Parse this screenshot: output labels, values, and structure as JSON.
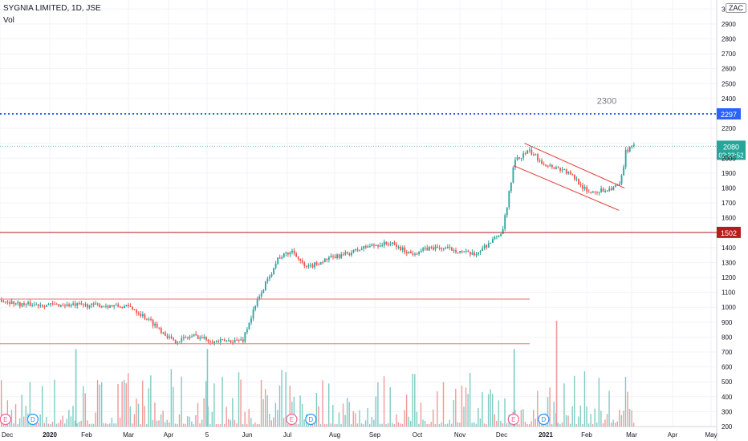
{
  "header": {
    "title": "SYGNIA LIMITED, 1D, JSE",
    "indicator": "Vol",
    "currency": "ZAC"
  },
  "chart_data": {
    "type": "candlestick",
    "ylim": [
      200,
      3050
    ],
    "y_ticks": [
      200,
      300,
      400,
      500,
      600,
      700,
      800,
      900,
      1000,
      1100,
      1200,
      1300,
      1400,
      1500,
      1600,
      1700,
      1800,
      1900,
      2000,
      2100,
      2200,
      2300,
      2400,
      2500,
      2600,
      2700,
      2800,
      2900,
      3000
    ],
    "x_ticks": [
      "Dec",
      "2020",
      "Feb",
      "Mar",
      "Apr",
      "5",
      "Jun",
      "Jul",
      "Aug",
      "Sep",
      "Oct",
      "Nov",
      "Dec",
      "2021",
      "Feb",
      "Mar",
      "Apr",
      "May"
    ],
    "price_path": [
      [
        "2019-12-01",
        1050
      ],
      [
        "2019-12-15",
        1020
      ],
      [
        "2020-01-15",
        1015
      ],
      [
        "2020-02-15",
        1012
      ],
      [
        "2020-03-05",
        1000
      ],
      [
        "2020-03-20",
        900
      ],
      [
        "2020-04-05",
        770
      ],
      [
        "2020-04-20",
        810
      ],
      [
        "2020-05-05",
        770
      ],
      [
        "2020-05-25",
        780
      ],
      [
        "2020-06-05",
        1050
      ],
      [
        "2020-06-20",
        1330
      ],
      [
        "2020-07-01",
        1380
      ],
      [
        "2020-07-10",
        1260
      ],
      [
        "2020-07-25",
        1320
      ],
      [
        "2020-08-10",
        1360
      ],
      [
        "2020-08-25",
        1410
      ],
      [
        "2020-09-10",
        1430
      ],
      [
        "2020-09-25",
        1360
      ],
      [
        "2020-10-10",
        1400
      ],
      [
        "2020-10-25",
        1390
      ],
      [
        "2020-11-10",
        1350
      ],
      [
        "2020-11-25",
        1460
      ],
      [
        "2020-12-01",
        1510
      ],
      [
        "2020-12-10",
        1980
      ],
      [
        "2020-12-20",
        2050
      ],
      [
        "2021-01-01",
        1960
      ],
      [
        "2021-01-15",
        1920
      ],
      [
        "2021-01-25",
        1850
      ],
      [
        "2021-02-01",
        1770
      ],
      [
        "2021-02-15",
        1790
      ],
      [
        "2021-02-25",
        1820
      ],
      [
        "2021-03-01",
        2050
      ],
      [
        "2021-03-08",
        2080
      ]
    ],
    "volume_path": [
      [
        "2019-12-01",
        50
      ],
      [
        "2021-03-08",
        50
      ]
    ],
    "volume_spikes": [
      [
        "2020-01-25",
        720
      ],
      [
        "2020-04-30",
        720
      ],
      [
        "2020-12-10",
        720
      ],
      [
        "2021-01-10",
        910
      ]
    ],
    "horizontal_lines": [
      {
        "label": "2297",
        "value": 2297,
        "style": "dotted",
        "color": "#2962ff"
      },
      {
        "label": "1502",
        "value": 1502,
        "style": "solid",
        "color": "#b71c1c"
      },
      {
        "value": 1055,
        "style": "solid",
        "color": "#e57373"
      },
      {
        "value": 755,
        "style": "solid",
        "color": "#e57373"
      }
    ],
    "annotation": {
      "text": "2300",
      "value": 2300
    },
    "trend_lines": [
      {
        "from": [
          "2020-12-18",
          2100
        ],
        "to": [
          "2021-03-01",
          1800
        ],
        "color": "#e53935"
      },
      {
        "from": [
          "2020-12-10",
          1950
        ],
        "to": [
          "2021-02-25",
          1650
        ],
        "color": "#e53935"
      }
    ],
    "current_price": {
      "value": 2080,
      "label": "2080",
      "countdown": "02:23:52",
      "color": "#26a69a"
    },
    "events": [
      {
        "type": "E",
        "date": "2019-12-05"
      },
      {
        "type": "D",
        "date": "2019-12-25"
      },
      {
        "type": "E",
        "date": "2020-07-01"
      },
      {
        "type": "D",
        "date": "2020-07-15"
      },
      {
        "type": "E",
        "date": "2020-12-10"
      },
      {
        "type": "D",
        "date": "2021-01-01"
      }
    ],
    "colors": {
      "up": "#26a69a",
      "down": "#ef5350",
      "grid": "#f0f3fa",
      "axis_text": "#131722"
    }
  }
}
